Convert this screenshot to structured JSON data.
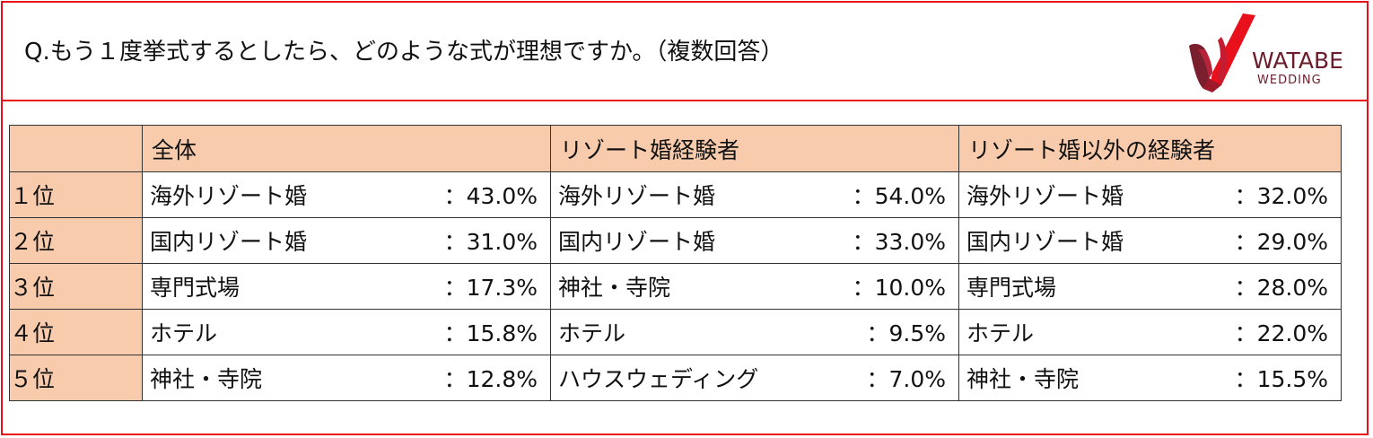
{
  "question": "Q.もう１度挙式するとしたら、どのような式が理想ですか。（複数回答）",
  "logo": {
    "brand": "WATABE",
    "sub": "WEDDING",
    "red": "#e8101a",
    "maroon": "#7a1f2e"
  },
  "table": {
    "columns": [
      "全体",
      "リゾート婚経験者",
      "リゾート婚以外の経験者"
    ],
    "rows": [
      {
        "rank": "１位",
        "cells": [
          {
            "name": "海外リゾート婚",
            "pct": "：43.0%"
          },
          {
            "name": "海外リゾート婚",
            "pct": "：54.0%"
          },
          {
            "name": "海外リゾート婚",
            "pct": "：32.0%"
          }
        ]
      },
      {
        "rank": "２位",
        "cells": [
          {
            "name": "国内リゾート婚",
            "pct": "：31.0%"
          },
          {
            "name": "国内リゾート婚",
            "pct": "：33.0%"
          },
          {
            "name": "国内リゾート婚",
            "pct": "：29.0%"
          }
        ]
      },
      {
        "rank": "３位",
        "cells": [
          {
            "name": "専門式場",
            "pct": "：17.3%"
          },
          {
            "name": "神社・寺院",
            "pct": "：10.0%"
          },
          {
            "name": "専門式場",
            "pct": "：28.0%"
          }
        ]
      },
      {
        "rank": "４位",
        "cells": [
          {
            "name": "ホテル",
            "pct": "：15.8%"
          },
          {
            "name": "ホテル",
            "pct": "：9.5%"
          },
          {
            "name": "ホテル",
            "pct": "：22.0%"
          }
        ]
      },
      {
        "rank": "５位",
        "cells": [
          {
            "name": "神社・寺院",
            "pct": "：12.8%"
          },
          {
            "name": "ハウスウェディング",
            "pct": "：7.0%"
          },
          {
            "name": "神社・寺院",
            "pct": "：15.5%"
          }
        ]
      }
    ]
  },
  "colors": {
    "border_red": "#e8101a",
    "header_fill": "#f8cbad"
  }
}
